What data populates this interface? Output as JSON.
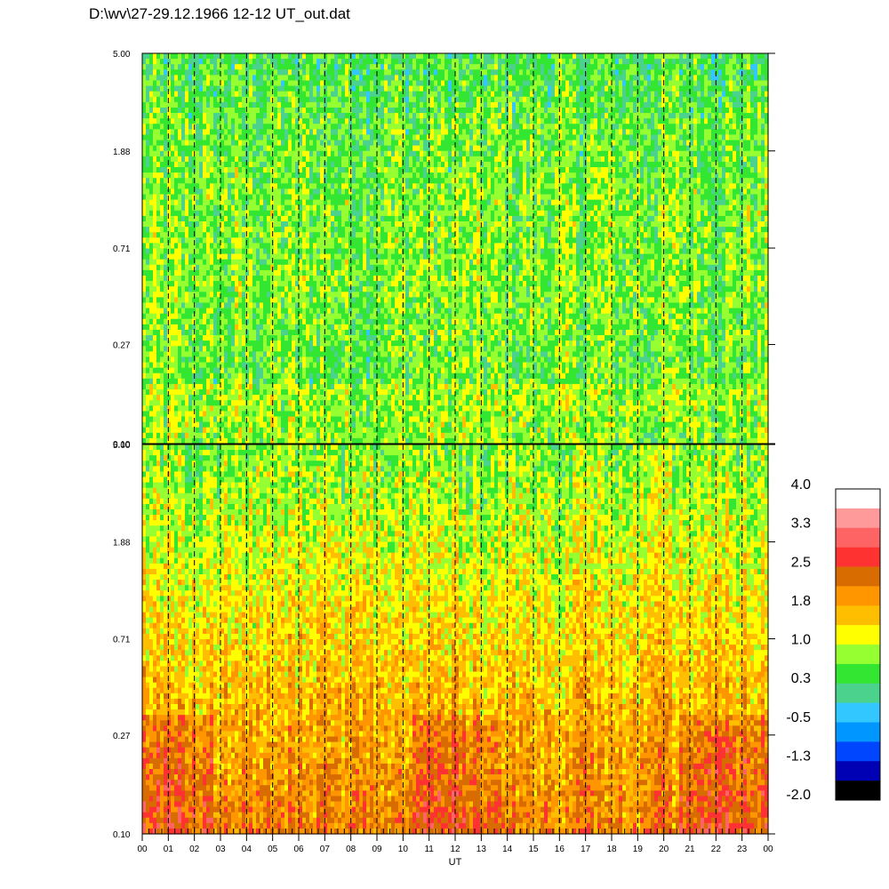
{
  "title": "D:\\wv\\27-29.12.1966  12-12 UT_out.dat",
  "chart_data": {
    "type": "heatmap",
    "xlabel": "UT",
    "x_ticks": [
      "00",
      "01",
      "02",
      "03",
      "04",
      "05",
      "06",
      "07",
      "08",
      "09",
      "10",
      "11",
      "12",
      "13",
      "14",
      "15",
      "16",
      "17",
      "18",
      "19",
      "20",
      "21",
      "22",
      "23",
      "00"
    ],
    "y_scale": "log",
    "y_ticks": [
      "5.00",
      "1.88",
      "0.71",
      "0.27",
      "0.10"
    ],
    "ylim": [
      0.1,
      5.0
    ],
    "xlim": [
      0,
      24
    ],
    "panels": [
      {
        "id": "top",
        "dominant": "green-yellow-cyan",
        "base_level": 0.6
      },
      {
        "id": "bottom",
        "dominant": "orange-yellow",
        "base_level": 1.6
      }
    ],
    "colorbar": {
      "labels": [
        "4.0",
        "3.3",
        "2.5",
        "1.8",
        "1.0",
        "0.3",
        "-0.5",
        "-1.3",
        "-2.0"
      ],
      "range": [
        -2.0,
        4.0
      ],
      "colors": [
        "#ffffff",
        "#ff9a9a",
        "#ff6464",
        "#ff3232",
        "#d96c00",
        "#ff9600",
        "#ffbe00",
        "#ffff00",
        "#96ff32",
        "#32e632",
        "#4bd28c",
        "#32c8ff",
        "#0096ff",
        "#0046ff",
        "#0000b4",
        "#000000"
      ]
    }
  }
}
